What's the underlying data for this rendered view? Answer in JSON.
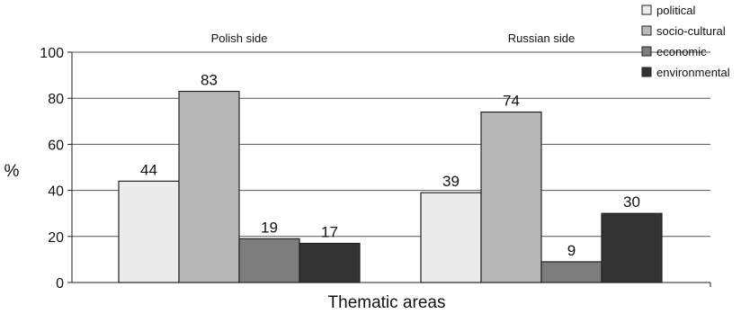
{
  "chart_data": {
    "type": "bar",
    "categories": [
      "Polish side",
      "Russian side"
    ],
    "series": [
      {
        "name": "political",
        "values": [
          44,
          39
        ],
        "color": "#ececec"
      },
      {
        "name": "socio-cultural",
        "values": [
          83,
          74
        ],
        "color": "#b9b9b9"
      },
      {
        "name": "economic",
        "values": [
          19,
          9
        ],
        "color": "#7d7d7d"
      },
      {
        "name": "environmental",
        "values": [
          17,
          30
        ],
        "color": "#333333"
      }
    ],
    "xlabel": "Thematic areas",
    "ylabel": "%",
    "ylim": [
      0,
      100
    ],
    "yticks": [
      0,
      20,
      40,
      60,
      80,
      100
    ],
    "grid": true,
    "legend_position": "top-right"
  }
}
